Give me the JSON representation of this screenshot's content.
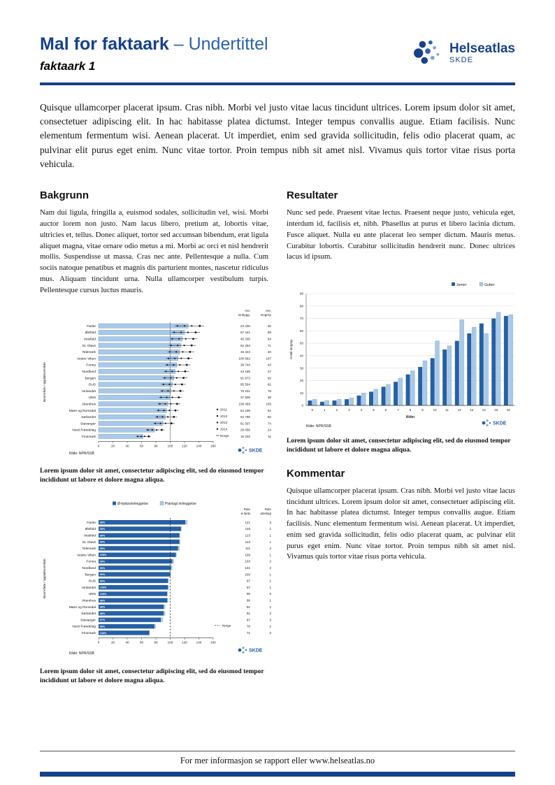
{
  "header": {
    "title_main": "Mal for faktaark",
    "title_sub": "– Undertittel",
    "subtitle": "faktaark 1",
    "logo_text": "Helseatlas",
    "logo_org": "SKDE"
  },
  "intro": "Quisque ullamcorper placerat ipsum. Cras nibh. Morbi vel justo vitae lacus tincidunt ultrices. Lorem ipsum dolor sit amet, consectetuer adipiscing elit. In hac habitasse platea dictumst. Integer tempus convallis augue. Etiam facilisis. Nunc elementum fermentum wisi. Aenean placerat. Ut imperdiet, enim sed gravida sollicitudin, felis odio placerat quam, ac pulvinar elit purus eget enim. Nunc vitae tortor. Proin tempus nibh sit amet nisl. Vivamus quis tortor vitae risus porta vehicula.",
  "sections": {
    "bakgrunn": {
      "heading": "Bakgrunn",
      "body": "Nam dui ligula, fringilla a, euismod sodales, sollicitudin vel, wisi. Morbi auctor lorem non justo. Nam lacus libero, pretium at, lobortis vitae, ultricies et, tellus. Donec aliquet, tortor sed accumsan bibendum, erat ligula aliquet magna, vitae ornare odio metus a mi. Morbi ac orci et nisl hendrerit mollis. Suspendisse ut massa. Cras nec ante. Pellentesque a nulla. Cum sociis natoque penatibus et magnis dis parturient montes, nascetur ridiculus mus. Aliquam tincidunt urna. Nulla ullamcorper vestibulum turpis. Pellentesque cursus luctus mauris."
    },
    "resultater": {
      "heading": "Resultater",
      "body": "Nunc sed pede. Praesent vitae lectus. Praesent neque justo, vehicula eget, interdum id, facilisis et, nibh. Phasellus at purus et libero lacinia dictum. Fusce aliquet. Nulla eu ante placerat leo semper dictum. Mauris metus. Curabitur lobortis. Curabitur sollicitudin hendrerit nunc. Donec ultrices lacus id ipsum."
    },
    "kommentar": {
      "heading": "Kommentar",
      "body": "Quisque ullamcorper placerat ipsum. Cras nibh. Morbi vel justo vitae lacus tincidunt ultrices. Lorem ipsum dolor sit amet, consectetuer adipiscing elit. In hac habitasse platea dictumst. Integer tempus convallis augue. Etiam facilisis. Nunc elementum fermentum wisi. Aenean placerat. Ut imperdiet, enim sed gravida sollicitudin, felis odio placerat quam, ac pulvinar elit purus eget enim. Nunc vitae tortor. Proin tempus nibh sit amet nisl. Vivamus quis tortor vitae risus porta vehicula."
    }
  },
  "caption": "Lorem ipsum dolor sit amet, consectetur adipiscing elit, sed do eiusmod tempor incididunt ut labore et dolore magna aliqua.",
  "footer": {
    "text": "For mer informasjon se rapport eller www.helseatlas.no"
  },
  "colors": {
    "brand": "#16418c",
    "brand_light": "#2a62ae",
    "chart_dark": "#2660a4",
    "chart_light": "#a9c9e8",
    "chart_light_stroke": "#6f9cc9",
    "skde_blue": "#2a5caa",
    "skde_light": "#7aa7d9"
  },
  "chart_data": [
    {
      "type": "bar",
      "orientation": "horizontal",
      "ylabel": "Boområde / opptaksområde",
      "xlim": [
        0,
        160
      ],
      "xticks": [
        0,
        20,
        40,
        60,
        80,
        100,
        120,
        140,
        160
      ],
      "categories": [
        "Førde",
        "Østfold",
        "Vestfold",
        "St. Olavs",
        "Telemark",
        "Vestre Viken",
        "Fonna",
        "Nordland",
        "Bergen",
        "OUS",
        "Innlandet",
        "UNN",
        "Akershus",
        "Møre og Romsdal",
        "Sørlandet",
        "Stavanger",
        "Nord-Trøndelag",
        "Finnmark"
      ],
      "rates": [
        125,
        120,
        117,
        115,
        113,
        111,
        109,
        107,
        105,
        103,
        101,
        99,
        97,
        95,
        93,
        90,
        78,
        62
      ],
      "year_factors": [
        0.88,
        0.96,
        1.04,
        1.13
      ],
      "spread": [
        0.85,
        1.18
      ],
      "col1_header": [
        "Ant.",
        "innbygg."
      ],
      "col2_header": [
        "Ant.",
        "inngrep"
      ],
      "innbygg": [
        "23 330",
        "57 341",
        "45 330",
        "62 253",
        "33 344",
        "100 582",
        "39 744",
        "43 186",
        "91 673",
        "95 564",
        "75 231",
        "37 609",
        "108 469",
        "54 199",
        "63 786",
        "81 507",
        "29 056",
        "15 332"
      ],
      "inngrep": [
        30,
        69,
        54,
        71,
        40,
        107,
        43,
        47,
        92,
        82,
        78,
        38,
        105,
        52,
        60,
        74,
        24,
        11
      ],
      "legend_years": [
        "2011",
        "2012",
        "2013",
        "2014"
      ],
      "norge_label": "Norge",
      "norge": 100,
      "source": "Kilde: NPR/SSB"
    },
    {
      "type": "bar",
      "orientation": "horizontal",
      "legend": [
        "Ø-hjelpsinnleggelse",
        "Planlagt innleggelse"
      ],
      "ylabel": "Boområde / opptaksområde",
      "xlim": [
        0,
        160
      ],
      "xticks": [
        0,
        20,
        40,
        60,
        80,
        100,
        120,
        140,
        160
      ],
      "categories": [
        "Førde",
        "Østfold",
        "Vestfold",
        "St. Olavs",
        "Telemark",
        "Vestre Viken",
        "Fonna",
        "Nordland",
        "Bergen",
        "OUS",
        "Innlandet",
        "UNN",
        "Akershus",
        "Møre og Romsdal",
        "Sørlandet",
        "Stavanger",
        "Nord-Trøndelag",
        "Finnmark"
      ],
      "pct_labels": [
        "98%",
        "99%",
        "99%",
        "99%",
        "99%",
        "100%",
        "99%",
        "99%",
        "99%",
        "99%",
        "100%",
        "100%",
        "98%",
        "98%",
        "98%",
        "97%",
        "98%",
        "100%"
      ],
      "rate_ohjelp": [
        121,
        115,
        113,
        113,
        111,
        108,
        103,
        101,
        100,
        97,
        97,
        96,
        96,
        91,
        91,
        87,
        78,
        71
      ],
      "rate_planlagt": [
        3,
        1,
        1,
        1,
        2,
        1,
        2,
        2,
        1,
        1,
        1,
        0,
        1,
        2,
        2,
        3,
        2,
        0
      ],
      "col1_header": [
        "Rate",
        "ø-hjelp"
      ],
      "col2_header": [
        "Rate",
        "planlagt"
      ],
      "norge_label": "Norge",
      "norge": 100,
      "source": "Kilde: NPR/SSB"
    },
    {
      "type": "bar",
      "orientation": "vertical",
      "legend": [
        "Jenter",
        "Gutter"
      ],
      "xlabel": "Alder",
      "ylabel": "Antall inngrep",
      "ylim": [
        0,
        90
      ],
      "yticks": [
        0,
        10,
        20,
        30,
        40,
        50,
        60,
        70,
        80,
        90
      ],
      "categories": [
        "0",
        "1",
        "2",
        "3",
        "4",
        "5",
        "6",
        "7",
        "8",
        "9",
        "10",
        "11",
        "12",
        "13",
        "14",
        "15",
        "16"
      ],
      "series": [
        {
          "name": "Jenter",
          "values": [
            4,
            3,
            4,
            5,
            8,
            11,
            15,
            19,
            25,
            31,
            38,
            45,
            52,
            58,
            66,
            70,
            72
          ]
        },
        {
          "name": "Gutter",
          "values": [
            5,
            4,
            5,
            6,
            10,
            13,
            17,
            22,
            28,
            36,
            52,
            48,
            69,
            63,
            58,
            75,
            73
          ]
        }
      ],
      "source": "Kilde: NPR/SSB"
    }
  ]
}
